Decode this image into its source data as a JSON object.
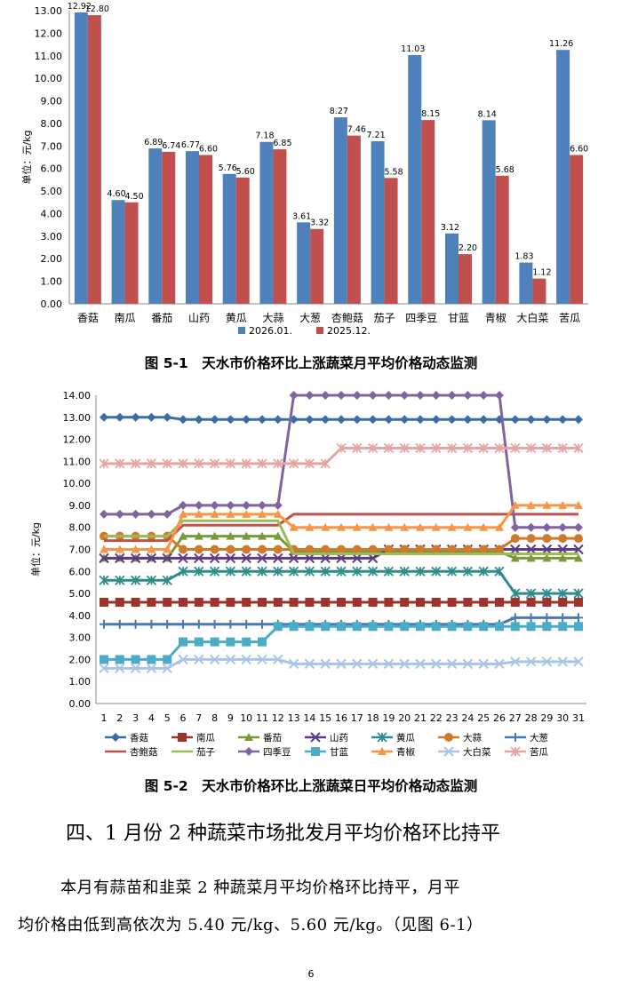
{
  "chart_data": [
    {
      "type": "bar",
      "title": "图 5-1　天水市价格环比上涨蔬菜月平均价格动态监测",
      "ylabel": "单位：元/kg",
      "ylim": [
        0,
        13
      ],
      "yticks": [
        "0.00",
        "1.00",
        "2.00",
        "3.00",
        "4.00",
        "5.00",
        "6.00",
        "7.00",
        "8.00",
        "9.00",
        "10.00",
        "11.00",
        "12.00",
        "13.00"
      ],
      "categories": [
        "香菇",
        "南瓜",
        "番茄",
        "山药",
        "黄瓜",
        "大蒜",
        "大葱",
        "杏鲍菇",
        "茄子",
        "四季豆",
        "甘蓝",
        "青椒",
        "大白菜",
        "苦瓜"
      ],
      "series": [
        {
          "name": "2026.01.",
          "color": "#4F81BD",
          "values": [
            12.92,
            4.6,
            6.89,
            6.77,
            5.76,
            7.18,
            3.61,
            8.27,
            7.21,
            11.03,
            3.12,
            8.14,
            1.83,
            11.26
          ],
          "labels": [
            "12.92",
            "4.60",
            "6.89",
            "6.77",
            "5.76",
            "7.18",
            "3.61",
            "8.27",
            "7.21",
            "11.03",
            "3.12",
            "8.14",
            "1.83",
            "11.26"
          ]
        },
        {
          "name": "2025.12.",
          "color": "#C0504D",
          "values": [
            12.8,
            4.5,
            6.74,
            6.6,
            5.6,
            6.85,
            3.32,
            7.46,
            5.58,
            8.15,
            2.2,
            5.68,
            1.12,
            6.6
          ],
          "labels": [
            "12.80",
            "4.50",
            "6.74",
            "6.60",
            "5.60",
            "6.85",
            "3.32",
            "7.46",
            "5.58",
            "8.15",
            "2.20",
            "5.68",
            "1.12",
            "6.60"
          ]
        }
      ]
    },
    {
      "type": "line",
      "title": "图 5-2　天水市价格环比上涨蔬菜日平均价格动态监测",
      "ylabel": "单位：元/kg",
      "ylim": [
        0,
        14
      ],
      "yticks": [
        "0.00",
        "1.00",
        "2.00",
        "3.00",
        "4.00",
        "5.00",
        "6.00",
        "7.00",
        "8.00",
        "9.00",
        "10.00",
        "11.00",
        "12.00",
        "13.00",
        "14.00"
      ],
      "x": [
        "1",
        "2",
        "3",
        "4",
        "5",
        "6",
        "7",
        "8",
        "9",
        "10",
        "11",
        "12",
        "13",
        "14",
        "15",
        "16",
        "17",
        "18",
        "19",
        "20",
        "21",
        "22",
        "23",
        "24",
        "25",
        "26",
        "27",
        "28",
        "29",
        "30",
        "31"
      ],
      "series": [
        {
          "name": "香菇",
          "color": "#3A6EA5",
          "marker": "diamond",
          "values": [
            13.0,
            13.0,
            13.0,
            13.0,
            13.0,
            12.9,
            12.9,
            12.9,
            12.9,
            12.9,
            12.9,
            12.9,
            12.9,
            12.9,
            12.9,
            12.9,
            12.9,
            12.9,
            12.9,
            12.9,
            12.9,
            12.9,
            12.9,
            12.9,
            12.9,
            12.9,
            12.9,
            12.9,
            12.9,
            12.9,
            12.9
          ]
        },
        {
          "name": "南瓜",
          "color": "#A0322E",
          "marker": "square",
          "values": [
            4.6,
            4.6,
            4.6,
            4.6,
            4.6,
            4.6,
            4.6,
            4.6,
            4.6,
            4.6,
            4.6,
            4.6,
            4.6,
            4.6,
            4.6,
            4.6,
            4.6,
            4.6,
            4.6,
            4.6,
            4.6,
            4.6,
            4.6,
            4.6,
            4.6,
            4.6,
            4.6,
            4.6,
            4.6,
            4.6,
            4.6
          ]
        },
        {
          "name": "番茄",
          "color": "#7A9A3A",
          "marker": "triangle",
          "values": [
            6.6,
            6.6,
            6.6,
            6.6,
            6.6,
            7.6,
            7.6,
            7.6,
            7.6,
            7.6,
            7.6,
            7.6,
            6.9,
            6.9,
            6.9,
            6.9,
            6.9,
            6.9,
            6.9,
            6.9,
            6.9,
            6.9,
            6.9,
            6.9,
            6.9,
            6.9,
            6.6,
            6.6,
            6.6,
            6.6,
            6.6
          ]
        },
        {
          "name": "山药",
          "color": "#5E3A86",
          "marker": "x",
          "values": [
            6.6,
            6.6,
            6.6,
            6.6,
            6.6,
            6.6,
            6.6,
            6.6,
            6.6,
            6.6,
            6.6,
            6.6,
            6.6,
            6.6,
            6.6,
            6.6,
            6.6,
            6.6,
            7.0,
            7.0,
            7.0,
            7.0,
            7.0,
            7.0,
            7.0,
            7.0,
            7.0,
            7.0,
            7.0,
            7.0,
            7.0
          ]
        },
        {
          "name": "黄瓜",
          "color": "#2F8C8C",
          "marker": "star",
          "values": [
            5.6,
            5.6,
            5.6,
            5.6,
            5.6,
            6.0,
            6.0,
            6.0,
            6.0,
            6.0,
            6.0,
            6.0,
            6.0,
            6.0,
            6.0,
            6.0,
            6.0,
            6.0,
            6.0,
            6.0,
            6.0,
            6.0,
            6.0,
            6.0,
            6.0,
            6.0,
            5.0,
            5.0,
            5.0,
            5.0,
            5.0
          ]
        },
        {
          "name": "大蒜",
          "color": "#D07A2C",
          "marker": "circle",
          "values": [
            7.6,
            7.6,
            7.6,
            7.6,
            7.6,
            7.0,
            7.0,
            7.0,
            7.0,
            7.0,
            7.0,
            7.0,
            7.0,
            7.0,
            7.0,
            7.0,
            7.0,
            7.0,
            7.0,
            7.0,
            7.0,
            7.0,
            7.0,
            7.0,
            7.0,
            7.0,
            7.5,
            7.5,
            7.5,
            7.5,
            7.5
          ]
        },
        {
          "name": "大葱",
          "color": "#4A78B0",
          "marker": "plus",
          "values": [
            3.6,
            3.6,
            3.6,
            3.6,
            3.6,
            3.6,
            3.6,
            3.6,
            3.6,
            3.6,
            3.6,
            3.6,
            3.6,
            3.6,
            3.6,
            3.6,
            3.6,
            3.6,
            3.6,
            3.6,
            3.6,
            3.6,
            3.6,
            3.6,
            3.6,
            3.6,
            3.9,
            3.9,
            3.9,
            3.9,
            3.9
          ]
        },
        {
          "name": "杏鲍菇",
          "color": "#C0504D",
          "marker": "none",
          "values": [
            7.4,
            7.4,
            7.4,
            7.4,
            7.4,
            8.1,
            8.1,
            8.1,
            8.1,
            8.1,
            8.1,
            8.1,
            8.6,
            8.6,
            8.6,
            8.6,
            8.6,
            8.6,
            8.6,
            8.6,
            8.6,
            8.6,
            8.6,
            8.6,
            8.6,
            8.6,
            8.6,
            8.6,
            8.6,
            8.6,
            8.6
          ]
        },
        {
          "name": "茄子",
          "color": "#9BBB59",
          "marker": "none",
          "values": [
            7.6,
            7.6,
            7.6,
            7.6,
            7.6,
            8.3,
            8.3,
            8.3,
            8.3,
            8.3,
            8.3,
            8.3,
            6.8,
            6.8,
            6.8,
            6.8,
            6.8,
            6.8,
            6.8,
            6.8,
            6.8,
            6.8,
            6.8,
            6.8,
            6.8,
            6.8,
            6.8,
            6.8,
            6.8,
            6.8,
            6.8
          ]
        },
        {
          "name": "四季豆",
          "color": "#8064A2",
          "marker": "diamond",
          "values": [
            8.6,
            8.6,
            8.6,
            8.6,
            8.6,
            9.0,
            9.0,
            9.0,
            9.0,
            9.0,
            9.0,
            9.0,
            14.0,
            14.0,
            14.0,
            14.0,
            14.0,
            14.0,
            14.0,
            14.0,
            14.0,
            14.0,
            14.0,
            14.0,
            14.0,
            14.0,
            8.0,
            8.0,
            8.0,
            8.0,
            8.0
          ]
        },
        {
          "name": "甘蓝",
          "color": "#4BACC6",
          "marker": "square",
          "values": [
            2.0,
            2.0,
            2.0,
            2.0,
            2.0,
            2.8,
            2.8,
            2.8,
            2.8,
            2.8,
            2.8,
            3.5,
            3.5,
            3.5,
            3.5,
            3.5,
            3.5,
            3.5,
            3.5,
            3.5,
            3.5,
            3.5,
            3.5,
            3.5,
            3.5,
            3.5,
            3.5,
            3.5,
            3.5,
            3.5,
            3.5
          ]
        },
        {
          "name": "青椒",
          "color": "#F79646",
          "marker": "triangle",
          "values": [
            7.0,
            7.0,
            7.0,
            7.0,
            7.0,
            8.6,
            8.6,
            8.6,
            8.6,
            8.6,
            8.6,
            8.6,
            8.0,
            8.0,
            8.0,
            8.0,
            8.0,
            8.0,
            8.0,
            8.0,
            8.0,
            8.0,
            8.0,
            8.0,
            8.0,
            8.0,
            9.0,
            9.0,
            9.0,
            9.0,
            9.0
          ]
        },
        {
          "name": "大白菜",
          "color": "#A9C4E4",
          "marker": "x",
          "values": [
            1.6,
            1.6,
            1.6,
            1.6,
            1.6,
            2.0,
            2.0,
            2.0,
            2.0,
            2.0,
            2.0,
            2.0,
            1.8,
            1.8,
            1.8,
            1.8,
            1.8,
            1.8,
            1.8,
            1.8,
            1.8,
            1.8,
            1.8,
            1.8,
            1.8,
            1.8,
            1.9,
            1.9,
            1.9,
            1.9,
            1.9
          ]
        },
        {
          "name": "苦瓜",
          "color": "#E6A5A0",
          "marker": "star",
          "values": [
            10.9,
            10.9,
            10.9,
            10.9,
            10.9,
            10.9,
            10.9,
            10.9,
            10.9,
            10.9,
            10.9,
            10.9,
            10.9,
            10.9,
            10.9,
            11.6,
            11.6,
            11.6,
            11.6,
            11.6,
            11.6,
            11.6,
            11.6,
            11.6,
            11.6,
            11.6,
            11.6,
            11.6,
            11.6,
            11.6,
            11.6
          ]
        }
      ]
    }
  ],
  "captions": {
    "fig1": "图 5-1　天水市价格环比上涨蔬菜月平均价格动态监测",
    "fig2": "图 5-2　天水市价格环比上涨蔬菜日平均价格动态监测"
  },
  "section": {
    "heading": "四、1 月份 2 种蔬菜市场批发月平均价格环比持平",
    "para_line1": "本月有蒜苗和韭菜 2 种蔬菜月平均价格环比持平，月平",
    "para_line2": "均价格由低到高依次为 5.40 元/kg、5.60 元/kg。（见图 6-1）"
  },
  "page_number": "6"
}
